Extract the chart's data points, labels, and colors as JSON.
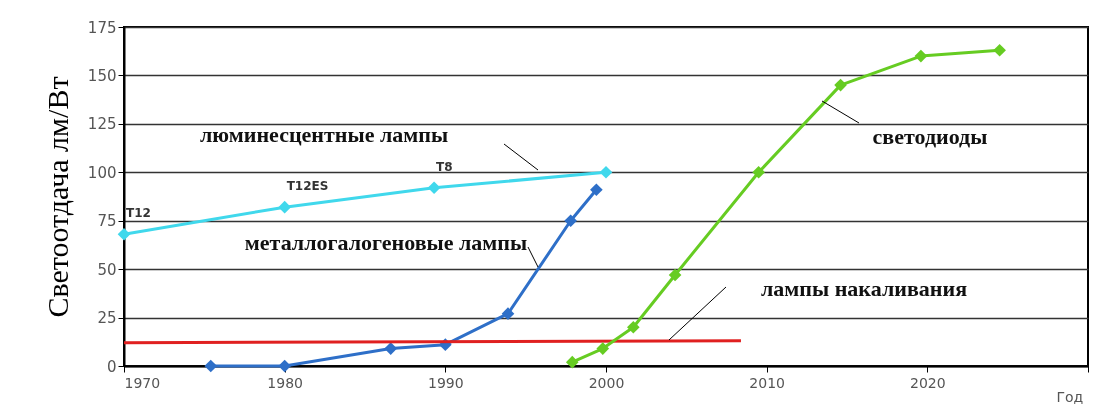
{
  "chart_data": {
    "type": "line",
    "ylabel": "Светоотдача лм/Вт",
    "xlabel": "Год",
    "xlim": [
      1970,
      2030
    ],
    "xticks": [
      1970,
      1980,
      1990,
      2000,
      2010,
      2020,
      {
        "value": 2030,
        "label": null
      }
    ],
    "ylim": [
      0,
      175
    ],
    "yticks": [
      0,
      25,
      50,
      75,
      100,
      125,
      150,
      175
    ],
    "grid": "y",
    "legend": false,
    "marker": "diamond",
    "series": [
      {
        "name": "люминесцентные лампы",
        "color": "#40d8ec",
        "x": [
          1970,
          1980,
          1989.3,
          2000
        ],
        "values": [
          68,
          82,
          92,
          100
        ]
      },
      {
        "name": "металлогалогеновые лампы",
        "color": "#2e6fc8",
        "x": [
          1975.4,
          1980,
          1986.6,
          1990,
          1993.9,
          1997.8,
          1999.4
        ],
        "values": [
          0,
          0,
          9,
          11,
          27,
          75,
          91
        ]
      },
      {
        "name": "лампы накаливания",
        "color": "#e02020",
        "marker": "none",
        "x": [
          1970,
          2008.4
        ],
        "values": [
          12,
          13
        ]
      },
      {
        "name": "светодиоды",
        "color": "#66cc22",
        "x": [
          1997.9,
          1999.8,
          2001.7,
          2004.3,
          2009.5,
          2014.6,
          2019.6,
          2024.5
        ],
        "values": [
          2,
          9,
          20,
          47,
          100,
          145,
          160,
          163
        ]
      }
    ],
    "annotations": [
      {
        "text": "T12",
        "x": 1970,
        "y": 68
      },
      {
        "text": "T12ES",
        "x": 1980,
        "y": 82
      },
      {
        "text": "T8",
        "x": 1989.3,
        "y": 92
      }
    ]
  }
}
